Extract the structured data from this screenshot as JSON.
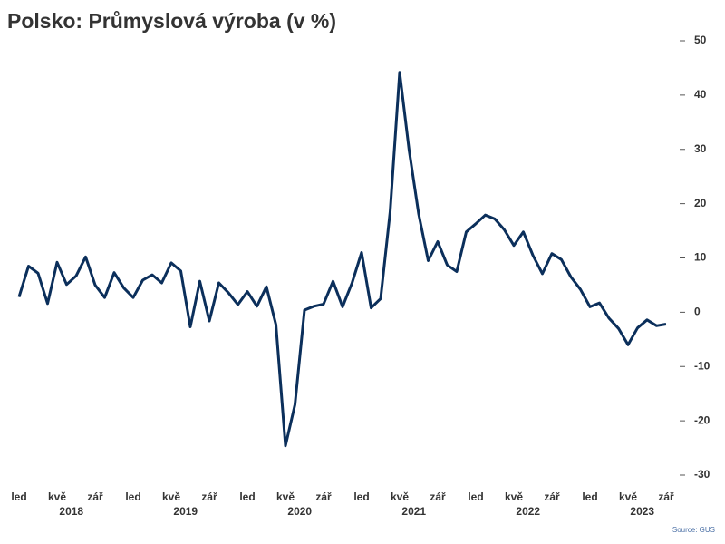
{
  "chart_data": {
    "type": "line",
    "title": "Polsko: Průmyslová výroba (v %)",
    "source": "Source: GUS",
    "categories": [
      "led",
      null,
      null,
      null,
      "kvě",
      null,
      null,
      null,
      "zář",
      null,
      null,
      null,
      "led",
      null,
      null,
      null,
      "kvě",
      null,
      null,
      null,
      "zář",
      null,
      null,
      null,
      "led",
      null,
      null,
      null,
      "kvě",
      null,
      null,
      null,
      "zář",
      null,
      null,
      null,
      "led",
      null,
      null,
      null,
      "kvě",
      null,
      null,
      null,
      "zář",
      null,
      null,
      null,
      "led",
      null,
      null,
      null,
      "kvě",
      null,
      null,
      null,
      "zář",
      null,
      null,
      null,
      "led",
      null,
      null,
      null,
      "kvě",
      null,
      null,
      null,
      "zář"
    ],
    "years": [
      "2018",
      "2019",
      "2020",
      "2021",
      "2022",
      "2023"
    ],
    "series": [
      {
        "name": "Průmyslová výroba",
        "color": "#0b2f5b",
        "values": [
          2.8,
          8.5,
          7.2,
          1.6,
          9.2,
          5.1,
          6.7,
          10.2,
          5.0,
          2.7,
          7.3,
          4.5,
          2.7,
          5.9,
          6.9,
          5.4,
          9.1,
          7.6,
          -2.7,
          5.7,
          -1.6,
          5.4,
          3.6,
          1.4,
          3.8,
          1.1,
          4.7,
          -2.3,
          -24.6,
          -17.0,
          0.4,
          1.1,
          1.5,
          5.7,
          1.0,
          5.4,
          11.0,
          0.8,
          2.5,
          18.5,
          44.2,
          29.8,
          18.1,
          9.5,
          13.0,
          8.7,
          7.5,
          14.8,
          16.3,
          17.9,
          17.2,
          15.2,
          12.3,
          14.8,
          10.5,
          7.1,
          10.8,
          9.7,
          6.5,
          4.2,
          1.0,
          1.7,
          -1.1,
          -3.0,
          -6.0,
          -2.9,
          -1.4,
          -2.5,
          -2.2
        ]
      }
    ],
    "ylim": [
      -30,
      50
    ],
    "yticks": [
      -30,
      -20,
      -10,
      0,
      10,
      20,
      30,
      40,
      50
    ],
    "y_axis_side": "right"
  }
}
